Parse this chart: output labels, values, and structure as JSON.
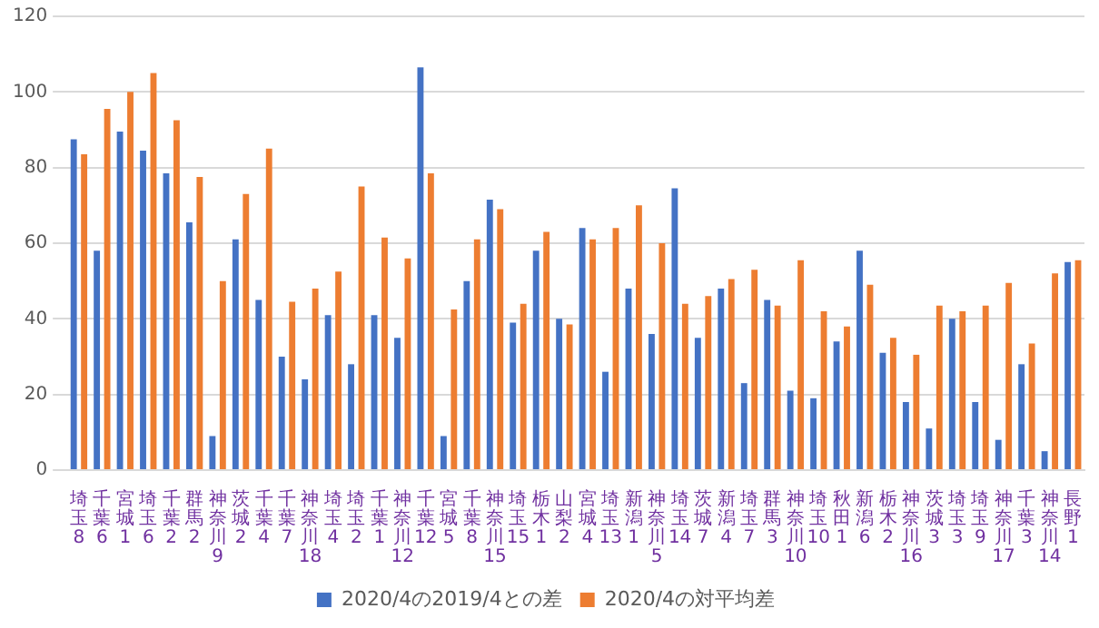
{
  "chart_data": {
    "type": "bar",
    "categories": [
      "埼玉8",
      "千葉6",
      "宮城1",
      "埼玉6",
      "千葉2",
      "群馬2",
      "神奈川9",
      "茨城2",
      "千葉4",
      "千葉7",
      "神奈川18",
      "埼玉4",
      "埼玉2",
      "千葉1",
      "神奈川12",
      "千葉12",
      "宮城5",
      "千葉8",
      "神奈川15",
      "埼玉15",
      "栃木1",
      "山梨2",
      "宮城4",
      "埼玉13",
      "新潟1",
      "神奈川5",
      "埼玉14",
      "茨城7",
      "新潟4",
      "埼玉7",
      "群馬3",
      "神奈川10",
      "埼玉10",
      "秋田1",
      "新潟6",
      "栃木2",
      "神奈川16",
      "茨城3",
      "埼玉3",
      "埼玉9",
      "神奈川17",
      "千葉3",
      "神奈川14",
      "長野1"
    ],
    "series": [
      {
        "name": "2020/4の2019/4との差",
        "color": "#4472c4",
        "values": [
          87.5,
          58,
          89.5,
          84.5,
          78.5,
          65.5,
          9,
          61,
          45,
          30,
          24,
          41,
          28,
          41,
          35,
          106.5,
          9,
          50,
          71.5,
          39,
          58,
          40,
          64,
          26,
          48,
          36,
          74.5,
          35,
          48,
          23,
          45,
          21,
          19,
          34,
          58,
          31,
          18,
          11,
          40,
          18,
          8,
          28,
          5,
          55
        ]
      },
      {
        "name": "2020/4の対平均差",
        "color": "#ed7d31",
        "values": [
          83.5,
          95.5,
          100,
          105,
          92.5,
          77.5,
          50,
          73,
          85,
          44.5,
          48,
          52.5,
          75,
          61.5,
          56,
          78.5,
          42.5,
          61,
          69,
          44,
          63,
          38.5,
          61,
          64,
          70,
          60,
          44,
          46,
          50.5,
          53,
          43.5,
          55.5,
          42,
          38,
          49,
          35,
          30.5,
          43.5,
          42,
          43.5,
          49.5,
          33.5,
          52,
          55.5
        ]
      }
    ],
    "ylim": [
      0,
      120
    ],
    "yticks": [
      0,
      20,
      40,
      60,
      80,
      100,
      120
    ],
    "grid": "y",
    "legend": "bottom"
  }
}
